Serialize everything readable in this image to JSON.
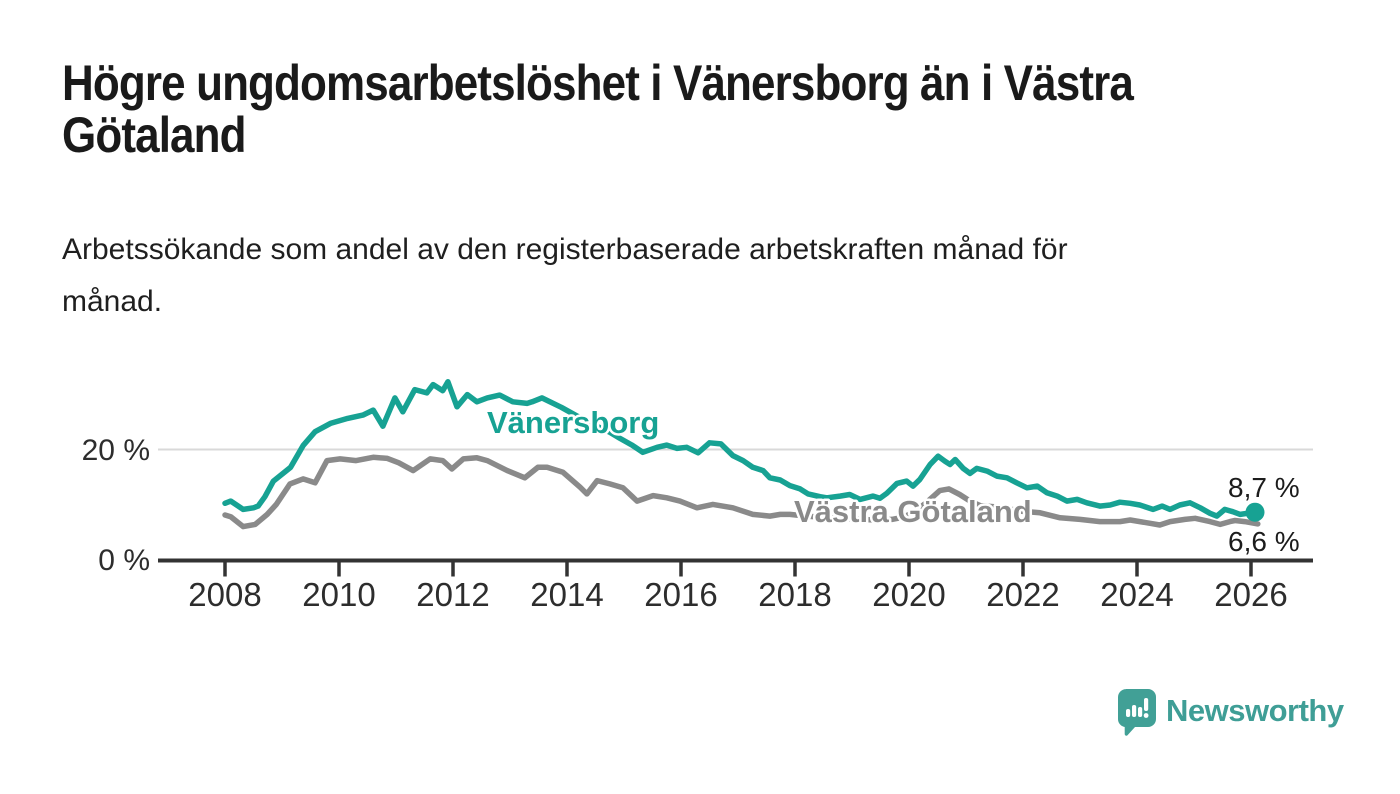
{
  "header": {
    "title_lines": [
      "Högre ungdomsarbetslöshet i Vänersborg än i Västra",
      "Götaland"
    ],
    "subtitle_lines": [
      "Arbetssökande som andel av den registerbaserade arbetskraften månad för",
      "månad."
    ]
  },
  "footer": {
    "brand": "Newsworthy",
    "brand_color": "#3f9e96"
  },
  "colors": {
    "vanersborg": "#17a293",
    "vastra_gotaland": "#8a8a8a",
    "gridline": "#d9d9d9",
    "axis": "#333333",
    "text": "#2d2d2d",
    "background": "#ffffff"
  },
  "chart_data": {
    "type": "line",
    "title": "Högre ungdomsarbetslöshet i Vänersborg än i Västra Götaland",
    "subtitle": "Arbetssökande som andel av den registerbaserade arbetskraften månad för månad.",
    "unit": "%",
    "x_axis": {
      "ticks": [
        2008,
        2010,
        2012,
        2014,
        2016,
        2018,
        2020,
        2022,
        2024,
        2026
      ],
      "xlim": [
        2006.8,
        2027.1
      ]
    },
    "y_axis": {
      "ylim": [
        0,
        36
      ],
      "grid_value": 20,
      "ticks": [
        {
          "value": 20,
          "label": "20 %"
        },
        {
          "value": 0,
          "label": "0 %"
        }
      ]
    },
    "legend_position": "inline-labels",
    "series": [
      {
        "name": "Vänersborg",
        "color": "#17a293",
        "end_label": "8,7 %",
        "end_value": 8.7,
        "points": [
          [
            2008.0,
            10.3
          ],
          [
            2008.1,
            10.7
          ],
          [
            2008.32,
            9.2
          ],
          [
            2008.5,
            9.5
          ],
          [
            2008.58,
            9.8
          ],
          [
            2008.7,
            11.5
          ],
          [
            2008.85,
            14.3
          ],
          [
            2009.15,
            16.8
          ],
          [
            2009.37,
            20.7
          ],
          [
            2009.58,
            23.2
          ],
          [
            2009.85,
            24.7
          ],
          [
            2010.15,
            25.6
          ],
          [
            2010.42,
            26.2
          ],
          [
            2010.6,
            27.1
          ],
          [
            2010.77,
            24.2
          ],
          [
            2010.98,
            29.3
          ],
          [
            2011.12,
            26.8
          ],
          [
            2011.33,
            30.8
          ],
          [
            2011.54,
            30.2
          ],
          [
            2011.65,
            31.7
          ],
          [
            2011.82,
            30.6
          ],
          [
            2011.91,
            32.2
          ],
          [
            2012.07,
            27.7
          ],
          [
            2012.25,
            29.9
          ],
          [
            2012.42,
            28.6
          ],
          [
            2012.6,
            29.3
          ],
          [
            2012.82,
            29.8
          ],
          [
            2013.05,
            28.6
          ],
          [
            2013.3,
            28.3
          ],
          [
            2013.39,
            28.6
          ],
          [
            2013.56,
            29.3
          ],
          [
            2013.9,
            27.6
          ],
          [
            2014.2,
            25.9
          ],
          [
            2014.5,
            24.3
          ],
          [
            2014.75,
            23.1
          ],
          [
            2014.93,
            22.0
          ],
          [
            2015.14,
            20.8
          ],
          [
            2015.33,
            19.5
          ],
          [
            2015.58,
            20.4
          ],
          [
            2015.75,
            20.8
          ],
          [
            2015.93,
            20.2
          ],
          [
            2016.1,
            20.4
          ],
          [
            2016.3,
            19.4
          ],
          [
            2016.5,
            21.2
          ],
          [
            2016.7,
            21.0
          ],
          [
            2016.91,
            18.9
          ],
          [
            2017.09,
            18.0
          ],
          [
            2017.26,
            16.8
          ],
          [
            2017.44,
            16.2
          ],
          [
            2017.56,
            14.9
          ],
          [
            2017.74,
            14.5
          ],
          [
            2017.91,
            13.5
          ],
          [
            2018.09,
            12.9
          ],
          [
            2018.23,
            12.0
          ],
          [
            2018.44,
            11.5
          ],
          [
            2018.56,
            11.3
          ],
          [
            2018.79,
            11.6
          ],
          [
            2018.96,
            11.9
          ],
          [
            2019.14,
            11.0
          ],
          [
            2019.37,
            11.6
          ],
          [
            2019.49,
            11.2
          ],
          [
            2019.61,
            12.1
          ],
          [
            2019.79,
            13.9
          ],
          [
            2019.96,
            14.3
          ],
          [
            2020.07,
            13.4
          ],
          [
            2020.19,
            14.6
          ],
          [
            2020.37,
            17.3
          ],
          [
            2020.51,
            18.8
          ],
          [
            2020.63,
            17.9
          ],
          [
            2020.72,
            17.3
          ],
          [
            2020.81,
            18.2
          ],
          [
            2020.95,
            16.6
          ],
          [
            2021.07,
            15.7
          ],
          [
            2021.19,
            16.6
          ],
          [
            2021.37,
            16.1
          ],
          [
            2021.54,
            15.2
          ],
          [
            2021.72,
            14.9
          ],
          [
            2021.89,
            14.0
          ],
          [
            2022.07,
            13.1
          ],
          [
            2022.25,
            13.4
          ],
          [
            2022.42,
            12.2
          ],
          [
            2022.6,
            11.6
          ],
          [
            2022.77,
            10.7
          ],
          [
            2022.95,
            11.0
          ],
          [
            2023.12,
            10.4
          ],
          [
            2023.35,
            9.8
          ],
          [
            2023.53,
            10.0
          ],
          [
            2023.7,
            10.5
          ],
          [
            2023.88,
            10.3
          ],
          [
            2024.05,
            10.0
          ],
          [
            2024.28,
            9.2
          ],
          [
            2024.44,
            9.8
          ],
          [
            2024.58,
            9.2
          ],
          [
            2024.75,
            10.0
          ],
          [
            2024.93,
            10.4
          ],
          [
            2025.11,
            9.5
          ],
          [
            2025.28,
            8.5
          ],
          [
            2025.4,
            8.0
          ],
          [
            2025.54,
            9.2
          ],
          [
            2025.68,
            8.8
          ],
          [
            2025.81,
            8.3
          ],
          [
            2026.07,
            8.7
          ]
        ]
      },
      {
        "name": "Västra Götaland",
        "color": "#8a8a8a",
        "end_label": "6,6 %",
        "end_value": 6.6,
        "points": [
          [
            2008.0,
            8.2
          ],
          [
            2008.1,
            7.9
          ],
          [
            2008.32,
            6.1
          ],
          [
            2008.53,
            6.5
          ],
          [
            2008.74,
            8.3
          ],
          [
            2008.9,
            10.1
          ],
          [
            2009.14,
            13.8
          ],
          [
            2009.37,
            14.7
          ],
          [
            2009.58,
            14.0
          ],
          [
            2009.79,
            18.0
          ],
          [
            2010.02,
            18.3
          ],
          [
            2010.3,
            18.0
          ],
          [
            2010.6,
            18.6
          ],
          [
            2010.85,
            18.4
          ],
          [
            2011.05,
            17.6
          ],
          [
            2011.3,
            16.2
          ],
          [
            2011.6,
            18.3
          ],
          [
            2011.82,
            18.0
          ],
          [
            2011.98,
            16.5
          ],
          [
            2012.18,
            18.3
          ],
          [
            2012.42,
            18.5
          ],
          [
            2012.6,
            18.0
          ],
          [
            2012.95,
            16.2
          ],
          [
            2013.26,
            14.9
          ],
          [
            2013.49,
            16.8
          ],
          [
            2013.65,
            16.8
          ],
          [
            2013.93,
            15.9
          ],
          [
            2014.23,
            13.2
          ],
          [
            2014.35,
            12.0
          ],
          [
            2014.53,
            14.4
          ],
          [
            2014.75,
            13.8
          ],
          [
            2014.98,
            13.1
          ],
          [
            2015.23,
            10.7
          ],
          [
            2015.51,
            11.7
          ],
          [
            2015.75,
            11.3
          ],
          [
            2015.98,
            10.7
          ],
          [
            2016.28,
            9.5
          ],
          [
            2016.56,
            10.1
          ],
          [
            2016.91,
            9.5
          ],
          [
            2017.26,
            8.3
          ],
          [
            2017.56,
            8.0
          ],
          [
            2017.74,
            8.3
          ],
          [
            2017.91,
            8.3
          ],
          [
            2018.2,
            8.0
          ],
          [
            2018.6,
            7.7
          ],
          [
            2019.0,
            7.5
          ],
          [
            2019.4,
            7.3
          ],
          [
            2019.7,
            7.4
          ],
          [
            2019.9,
            7.8
          ],
          [
            2020.1,
            8.8
          ],
          [
            2020.3,
            10.4
          ],
          [
            2020.54,
            12.6
          ],
          [
            2020.7,
            12.9
          ],
          [
            2020.89,
            11.9
          ],
          [
            2021.07,
            10.7
          ],
          [
            2021.25,
            9.9
          ],
          [
            2021.6,
            9.6
          ],
          [
            2021.95,
            8.9
          ],
          [
            2022.3,
            8.6
          ],
          [
            2022.65,
            7.7
          ],
          [
            2023.0,
            7.4
          ],
          [
            2023.35,
            7.0
          ],
          [
            2023.7,
            7.0
          ],
          [
            2023.88,
            7.3
          ],
          [
            2024.23,
            6.7
          ],
          [
            2024.4,
            6.4
          ],
          [
            2024.58,
            7.0
          ],
          [
            2024.84,
            7.4
          ],
          [
            2025.02,
            7.6
          ],
          [
            2025.28,
            7.0
          ],
          [
            2025.46,
            6.5
          ],
          [
            2025.63,
            7.0
          ],
          [
            2025.72,
            7.2
          ],
          [
            2025.89,
            7.0
          ],
          [
            2026.12,
            6.6
          ]
        ]
      }
    ]
  }
}
